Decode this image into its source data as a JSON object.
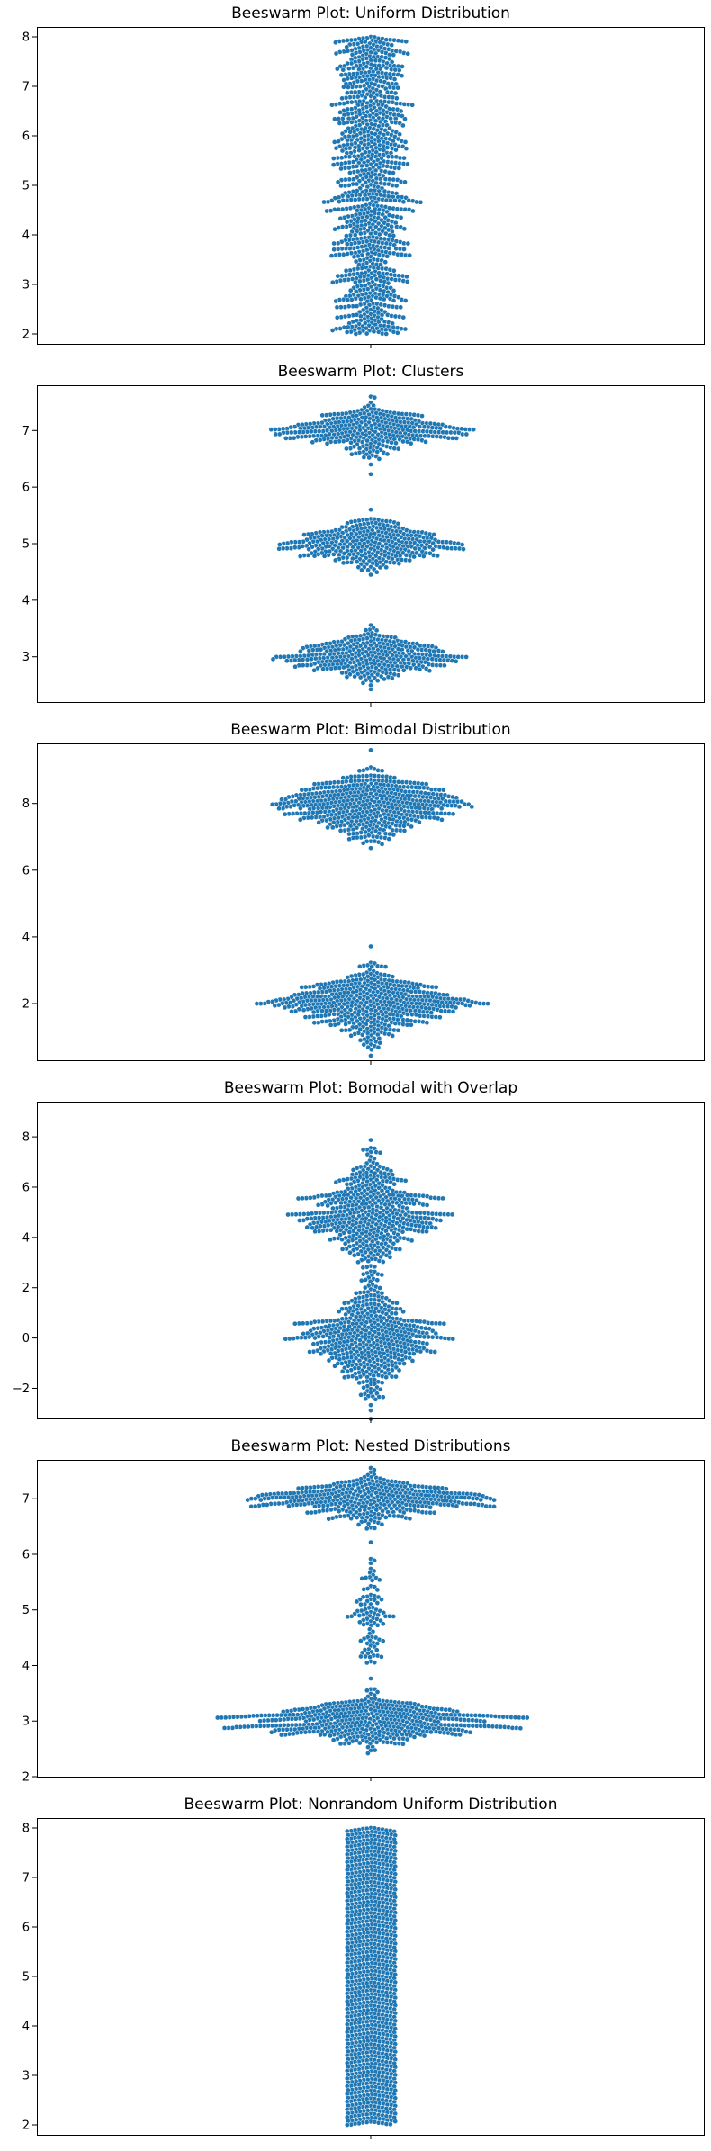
{
  "style": {
    "dot_color": "#1f77b4",
    "dot_edge": "#ffffff",
    "axes_color": "#000000"
  },
  "chart_data": [
    {
      "type": "scatter",
      "title": "Beeswarm Plot: Uniform Distribution",
      "xlabel": "",
      "ylabel": "",
      "ylim": [
        1.8,
        8.2
      ],
      "yticks": [
        2,
        3,
        4,
        5,
        6,
        7,
        8
      ],
      "grid": false,
      "distribution": {
        "kind": "uniform",
        "low": 2,
        "high": 8,
        "n": 1000
      }
    },
    {
      "type": "scatter",
      "title": "Beeswarm Plot: Clusters",
      "xlabel": "",
      "ylabel": "",
      "ylim": [
        2.2,
        7.8
      ],
      "yticks": [
        3,
        4,
        5,
        6,
        7
      ],
      "grid": false,
      "distribution": {
        "kind": "clusters",
        "clusters": [
          {
            "mean": 3,
            "sd": 0.2,
            "n": 333
          },
          {
            "mean": 5,
            "sd": 0.2,
            "n": 333
          },
          {
            "mean": 7,
            "sd": 0.2,
            "n": 334
          }
        ]
      }
    },
    {
      "type": "scatter",
      "title": "Beeswarm Plot: Bimodal Distribution",
      "xlabel": "",
      "ylabel": "",
      "ylim": [
        0.3,
        9.8
      ],
      "yticks": [
        2,
        4,
        6,
        8
      ],
      "grid": false,
      "distribution": {
        "kind": "clusters",
        "clusters": [
          {
            "mean": 2,
            "sd": 0.5,
            "n": 500
          },
          {
            "mean": 8,
            "sd": 0.5,
            "n": 500
          }
        ]
      }
    },
    {
      "type": "scatter",
      "title": "Beeswarm Plot: Bomodal with Overlap",
      "xlabel": "",
      "ylabel": "",
      "ylim": [
        -3.2,
        9.4
      ],
      "yticks": [
        -2,
        0,
        2,
        4,
        6,
        8
      ],
      "grid": false,
      "distribution": {
        "kind": "clusters",
        "clusters": [
          {
            "mean": 0,
            "sd": 1,
            "n": 500
          },
          {
            "mean": 5,
            "sd": 1,
            "n": 500
          }
        ]
      }
    },
    {
      "type": "scatter",
      "title": "Beeswarm Plot: Nested Distributions",
      "xlabel": "",
      "ylabel": "",
      "ylim": [
        2.0,
        7.7
      ],
      "yticks": [
        2,
        3,
        4,
        5,
        6,
        7
      ],
      "grid": false,
      "distribution": {
        "kind": "clusters",
        "clusters": [
          {
            "mean": 3,
            "sd": 0.2,
            "n": 500
          },
          {
            "mean": 5,
            "sd": 0.5,
            "n": 100
          },
          {
            "mean": 7,
            "sd": 0.2,
            "n": 400
          }
        ]
      }
    },
    {
      "type": "scatter",
      "title": "Beeswarm Plot: Nonrandom Uniform Distribution",
      "xlabel": "",
      "ylabel": "",
      "ylim": [
        1.8,
        8.2
      ],
      "yticks": [
        2,
        3,
        4,
        5,
        6,
        7,
        8
      ],
      "grid": false,
      "distribution": {
        "kind": "linspace",
        "low": 2,
        "high": 8,
        "n": 1000
      }
    }
  ]
}
